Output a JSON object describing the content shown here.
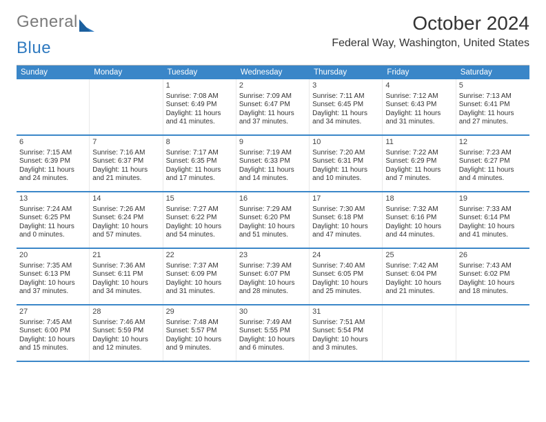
{
  "brand": {
    "part1": "General",
    "part2": "Blue"
  },
  "title": "October 2024",
  "location": "Federal Way, Washington, United States",
  "header_bg": "#3a86c8",
  "header_text": "#ffffff",
  "divider_color": "#3a86c8",
  "day_names": [
    "Sunday",
    "Monday",
    "Tuesday",
    "Wednesday",
    "Thursday",
    "Friday",
    "Saturday"
  ],
  "weeks": [
    [
      {
        "n": "",
        "sr": "",
        "ss": "",
        "dl": ""
      },
      {
        "n": "",
        "sr": "",
        "ss": "",
        "dl": ""
      },
      {
        "n": "1",
        "sr": "Sunrise: 7:08 AM",
        "ss": "Sunset: 6:49 PM",
        "dl": "Daylight: 11 hours and 41 minutes."
      },
      {
        "n": "2",
        "sr": "Sunrise: 7:09 AM",
        "ss": "Sunset: 6:47 PM",
        "dl": "Daylight: 11 hours and 37 minutes."
      },
      {
        "n": "3",
        "sr": "Sunrise: 7:11 AM",
        "ss": "Sunset: 6:45 PM",
        "dl": "Daylight: 11 hours and 34 minutes."
      },
      {
        "n": "4",
        "sr": "Sunrise: 7:12 AM",
        "ss": "Sunset: 6:43 PM",
        "dl": "Daylight: 11 hours and 31 minutes."
      },
      {
        "n": "5",
        "sr": "Sunrise: 7:13 AM",
        "ss": "Sunset: 6:41 PM",
        "dl": "Daylight: 11 hours and 27 minutes."
      }
    ],
    [
      {
        "n": "6",
        "sr": "Sunrise: 7:15 AM",
        "ss": "Sunset: 6:39 PM",
        "dl": "Daylight: 11 hours and 24 minutes."
      },
      {
        "n": "7",
        "sr": "Sunrise: 7:16 AM",
        "ss": "Sunset: 6:37 PM",
        "dl": "Daylight: 11 hours and 21 minutes."
      },
      {
        "n": "8",
        "sr": "Sunrise: 7:17 AM",
        "ss": "Sunset: 6:35 PM",
        "dl": "Daylight: 11 hours and 17 minutes."
      },
      {
        "n": "9",
        "sr": "Sunrise: 7:19 AM",
        "ss": "Sunset: 6:33 PM",
        "dl": "Daylight: 11 hours and 14 minutes."
      },
      {
        "n": "10",
        "sr": "Sunrise: 7:20 AM",
        "ss": "Sunset: 6:31 PM",
        "dl": "Daylight: 11 hours and 10 minutes."
      },
      {
        "n": "11",
        "sr": "Sunrise: 7:22 AM",
        "ss": "Sunset: 6:29 PM",
        "dl": "Daylight: 11 hours and 7 minutes."
      },
      {
        "n": "12",
        "sr": "Sunrise: 7:23 AM",
        "ss": "Sunset: 6:27 PM",
        "dl": "Daylight: 11 hours and 4 minutes."
      }
    ],
    [
      {
        "n": "13",
        "sr": "Sunrise: 7:24 AM",
        "ss": "Sunset: 6:25 PM",
        "dl": "Daylight: 11 hours and 0 minutes."
      },
      {
        "n": "14",
        "sr": "Sunrise: 7:26 AM",
        "ss": "Sunset: 6:24 PM",
        "dl": "Daylight: 10 hours and 57 minutes."
      },
      {
        "n": "15",
        "sr": "Sunrise: 7:27 AM",
        "ss": "Sunset: 6:22 PM",
        "dl": "Daylight: 10 hours and 54 minutes."
      },
      {
        "n": "16",
        "sr": "Sunrise: 7:29 AM",
        "ss": "Sunset: 6:20 PM",
        "dl": "Daylight: 10 hours and 51 minutes."
      },
      {
        "n": "17",
        "sr": "Sunrise: 7:30 AM",
        "ss": "Sunset: 6:18 PM",
        "dl": "Daylight: 10 hours and 47 minutes."
      },
      {
        "n": "18",
        "sr": "Sunrise: 7:32 AM",
        "ss": "Sunset: 6:16 PM",
        "dl": "Daylight: 10 hours and 44 minutes."
      },
      {
        "n": "19",
        "sr": "Sunrise: 7:33 AM",
        "ss": "Sunset: 6:14 PM",
        "dl": "Daylight: 10 hours and 41 minutes."
      }
    ],
    [
      {
        "n": "20",
        "sr": "Sunrise: 7:35 AM",
        "ss": "Sunset: 6:13 PM",
        "dl": "Daylight: 10 hours and 37 minutes."
      },
      {
        "n": "21",
        "sr": "Sunrise: 7:36 AM",
        "ss": "Sunset: 6:11 PM",
        "dl": "Daylight: 10 hours and 34 minutes."
      },
      {
        "n": "22",
        "sr": "Sunrise: 7:37 AM",
        "ss": "Sunset: 6:09 PM",
        "dl": "Daylight: 10 hours and 31 minutes."
      },
      {
        "n": "23",
        "sr": "Sunrise: 7:39 AM",
        "ss": "Sunset: 6:07 PM",
        "dl": "Daylight: 10 hours and 28 minutes."
      },
      {
        "n": "24",
        "sr": "Sunrise: 7:40 AM",
        "ss": "Sunset: 6:05 PM",
        "dl": "Daylight: 10 hours and 25 minutes."
      },
      {
        "n": "25",
        "sr": "Sunrise: 7:42 AM",
        "ss": "Sunset: 6:04 PM",
        "dl": "Daylight: 10 hours and 21 minutes."
      },
      {
        "n": "26",
        "sr": "Sunrise: 7:43 AM",
        "ss": "Sunset: 6:02 PM",
        "dl": "Daylight: 10 hours and 18 minutes."
      }
    ],
    [
      {
        "n": "27",
        "sr": "Sunrise: 7:45 AM",
        "ss": "Sunset: 6:00 PM",
        "dl": "Daylight: 10 hours and 15 minutes."
      },
      {
        "n": "28",
        "sr": "Sunrise: 7:46 AM",
        "ss": "Sunset: 5:59 PM",
        "dl": "Daylight: 10 hours and 12 minutes."
      },
      {
        "n": "29",
        "sr": "Sunrise: 7:48 AM",
        "ss": "Sunset: 5:57 PM",
        "dl": "Daylight: 10 hours and 9 minutes."
      },
      {
        "n": "30",
        "sr": "Sunrise: 7:49 AM",
        "ss": "Sunset: 5:55 PM",
        "dl": "Daylight: 10 hours and 6 minutes."
      },
      {
        "n": "31",
        "sr": "Sunrise: 7:51 AM",
        "ss": "Sunset: 5:54 PM",
        "dl": "Daylight: 10 hours and 3 minutes."
      },
      {
        "n": "",
        "sr": "",
        "ss": "",
        "dl": ""
      },
      {
        "n": "",
        "sr": "",
        "ss": "",
        "dl": ""
      }
    ]
  ]
}
